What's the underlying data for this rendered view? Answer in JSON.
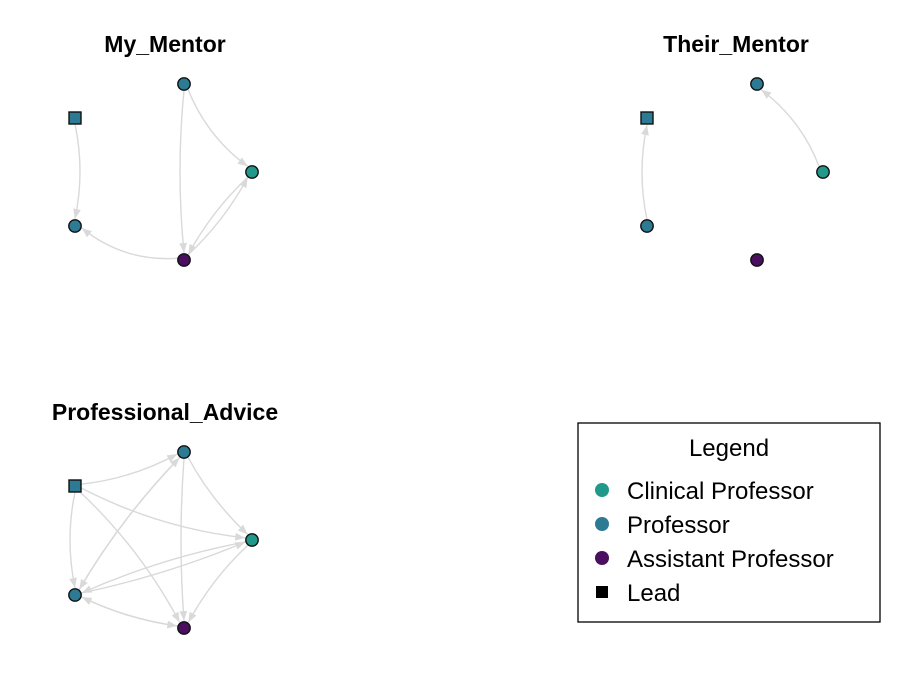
{
  "colors": {
    "clinical_professor": "#21998a",
    "professor": "#2c7a93",
    "assistant_professor": "#4a0f5e",
    "edge": "#d9d9d9"
  },
  "nodes": [
    {
      "id": "lead",
      "role": "professor",
      "lead": true
    },
    {
      "id": "top",
      "role": "professor",
      "lead": false
    },
    {
      "id": "right",
      "role": "clinical_professor",
      "lead": false
    },
    {
      "id": "left",
      "role": "professor",
      "lead": false
    },
    {
      "id": "bottom",
      "role": "assistant_professor",
      "lead": false
    }
  ],
  "panels": [
    {
      "title": "My_Mentor",
      "edges": [
        {
          "from": "lead",
          "to": "left"
        },
        {
          "from": "top",
          "to": "right"
        },
        {
          "from": "top",
          "to": "bottom"
        },
        {
          "from": "right",
          "to": "bottom"
        },
        {
          "from": "bottom",
          "to": "right"
        },
        {
          "from": "bottom",
          "to": "left"
        }
      ]
    },
    {
      "title": "Their_Mentor",
      "edges": [
        {
          "from": "left",
          "to": "lead"
        },
        {
          "from": "right",
          "to": "top"
        }
      ]
    },
    {
      "title": "Professional_Advice",
      "edges": [
        {
          "from": "lead",
          "to": "top"
        },
        {
          "from": "lead",
          "to": "right"
        },
        {
          "from": "lead",
          "to": "bottom"
        },
        {
          "from": "lead",
          "to": "left"
        },
        {
          "from": "top",
          "to": "left"
        },
        {
          "from": "top",
          "to": "bottom"
        },
        {
          "from": "left",
          "to": "top"
        },
        {
          "from": "right",
          "to": "left"
        },
        {
          "from": "left",
          "to": "right"
        },
        {
          "from": "right",
          "to": "bottom"
        },
        {
          "from": "bottom",
          "to": "left"
        },
        {
          "from": "left",
          "to": "bottom"
        },
        {
          "from": "top",
          "to": "right"
        }
      ]
    }
  ],
  "legend": {
    "title": "Legend",
    "items": [
      {
        "label": "Clinical Professor",
        "shape": "circle",
        "color_key": "clinical_professor"
      },
      {
        "label": "Professor",
        "shape": "circle",
        "color_key": "professor"
      },
      {
        "label": "Assistant Professor",
        "shape": "circle",
        "color_key": "assistant_professor"
      },
      {
        "label": "Lead",
        "shape": "square",
        "color": "#000000"
      }
    ]
  }
}
